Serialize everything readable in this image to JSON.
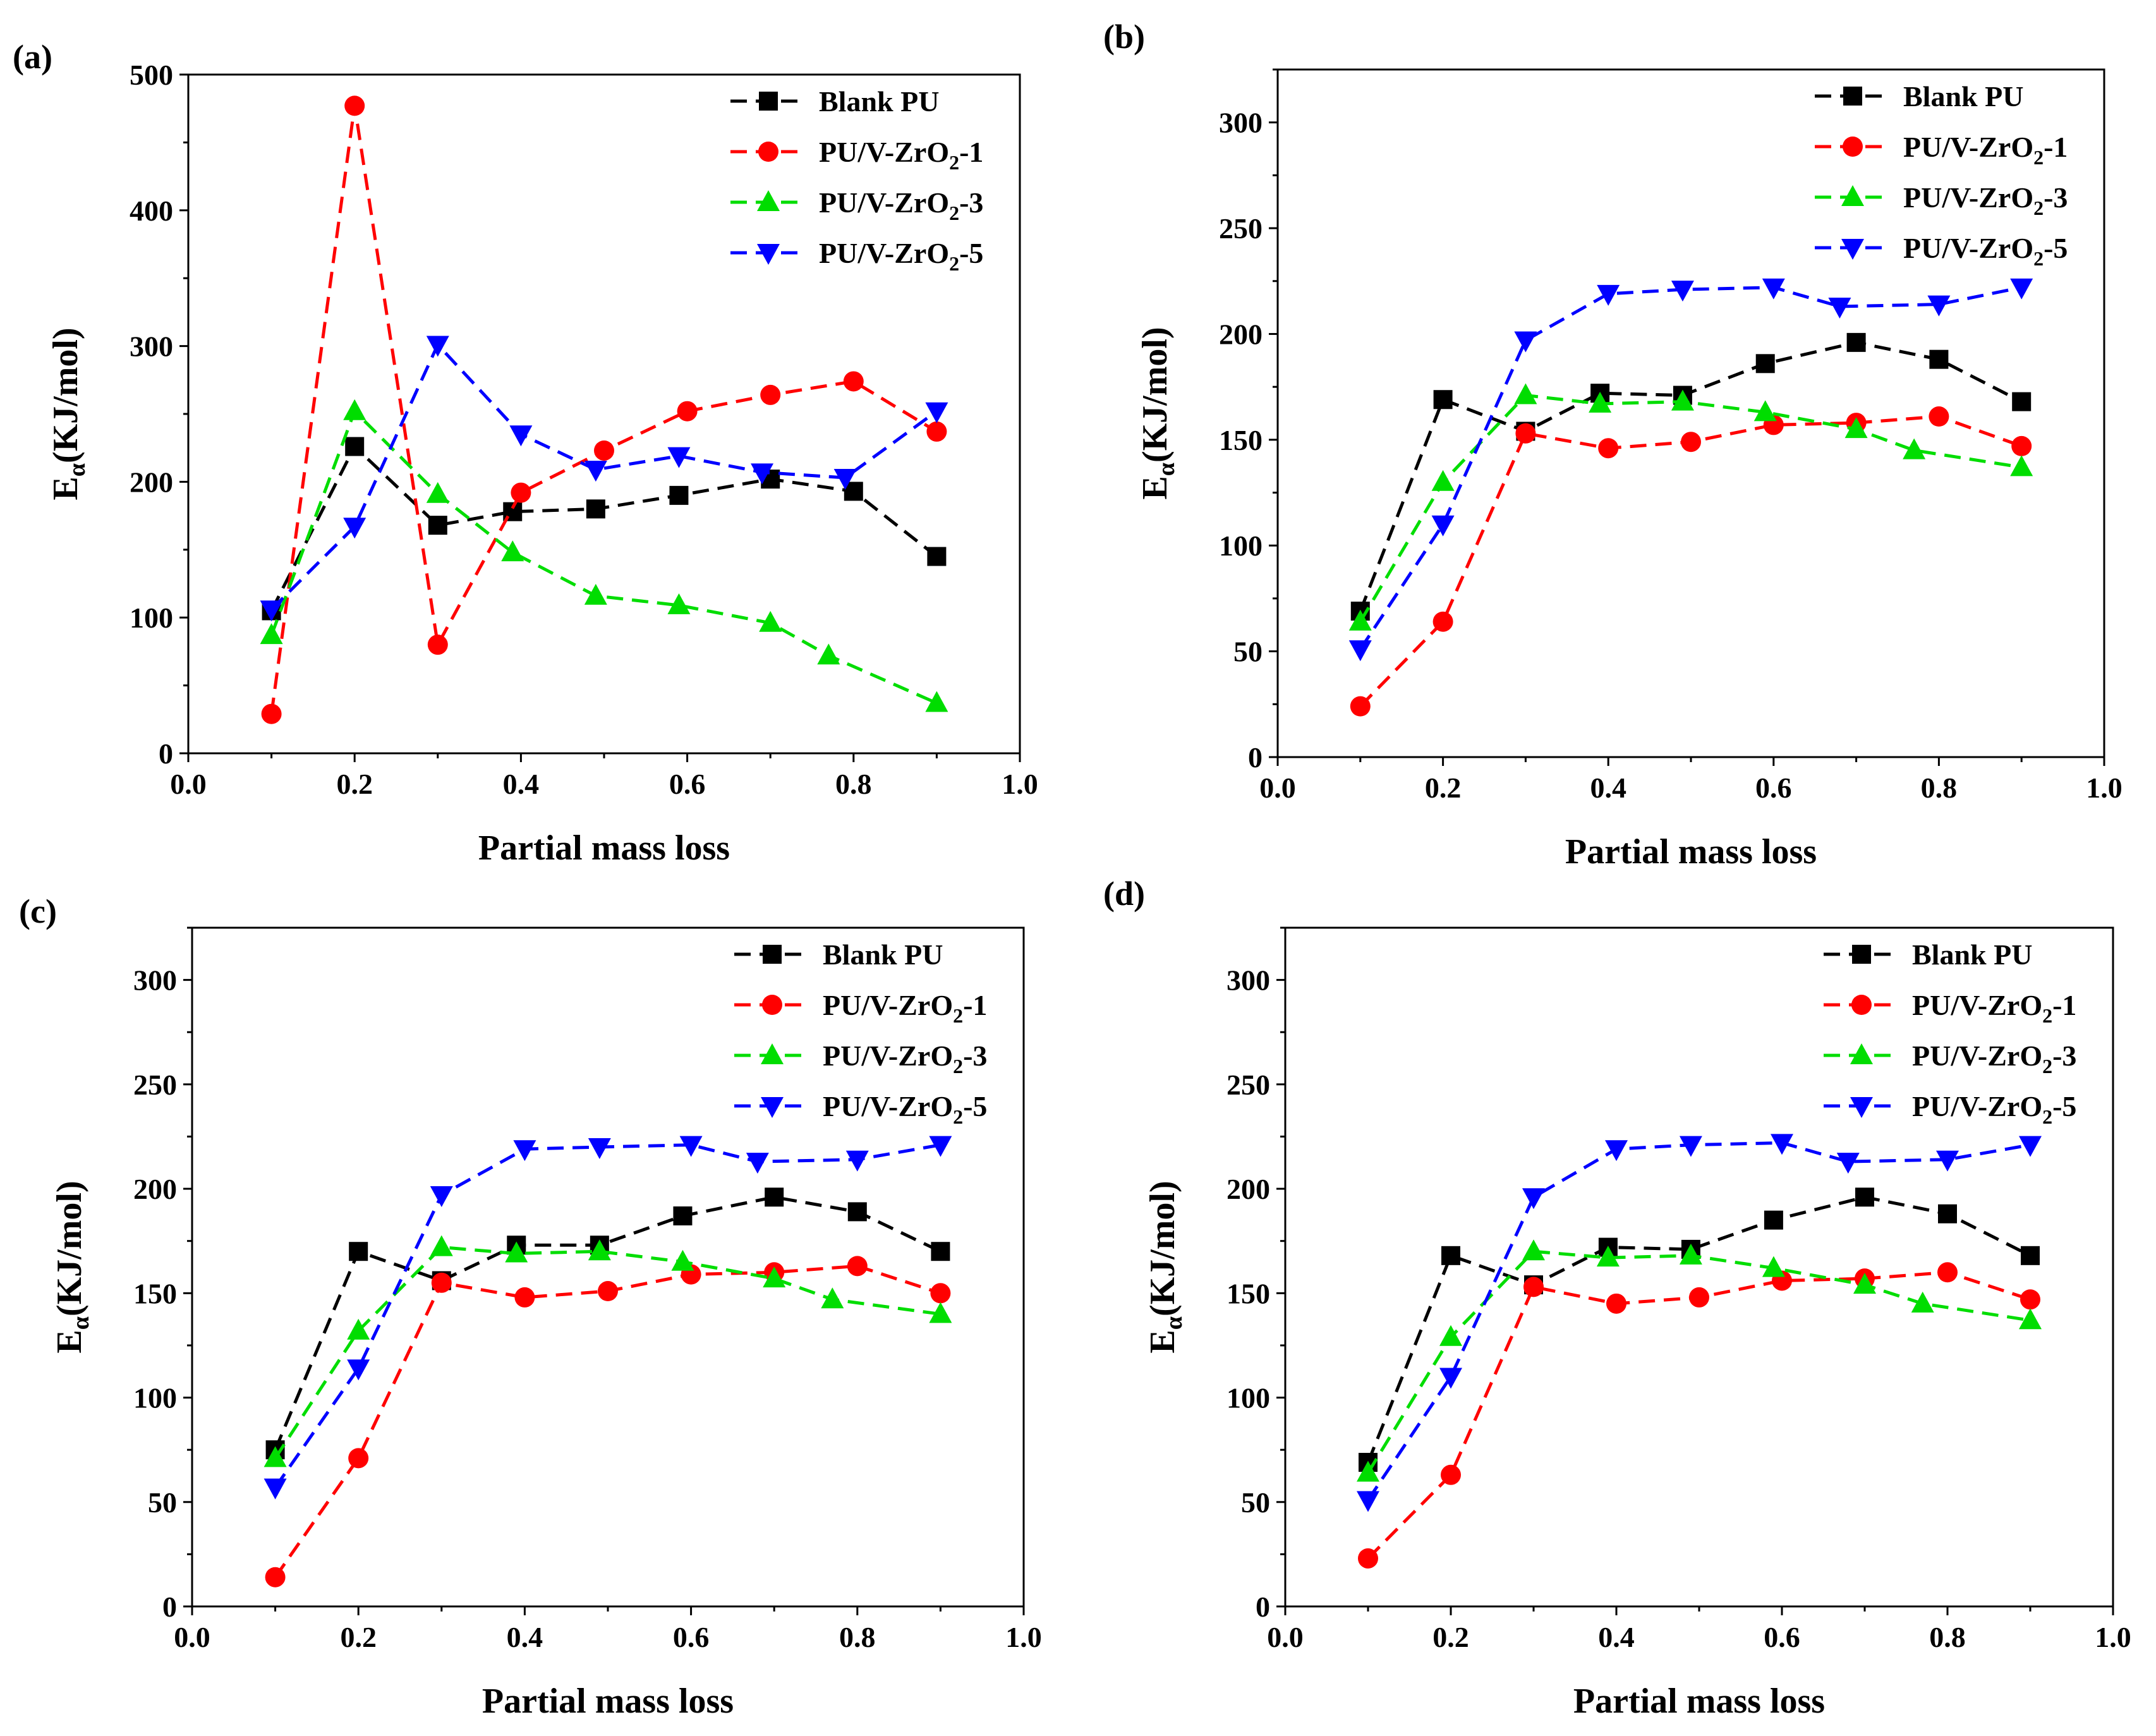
{
  "figure_title": "",
  "chart_data": [
    {
      "panel_label": "(a)",
      "type": "line",
      "xlabel": "Partial mass loss",
      "ylabel": "Eα(KJ/mol)",
      "xlim": [
        0.0,
        1.0
      ],
      "ylim": [
        0,
        500
      ],
      "xticks": [
        "0.0",
        "0.2",
        "0.4",
        "0.6",
        "0.8",
        "1.0"
      ],
      "yticks": [
        "0",
        "100",
        "200",
        "300",
        "400",
        "500"
      ],
      "xtick_values": [
        0.0,
        0.2,
        0.4,
        0.6,
        0.8,
        1.0
      ],
      "ytick_values": [
        0,
        100,
        200,
        300,
        400,
        500
      ],
      "grid": false,
      "legend_position": "top-right",
      "series": [
        {
          "name": "Blank PU",
          "color": "#000000",
          "marker": "square",
          "x": [
            0.1,
            0.2,
            0.3,
            0.39,
            0.49,
            0.59,
            0.7,
            0.8,
            0.9
          ],
          "y": [
            105,
            226,
            168,
            178,
            180,
            190,
            202,
            193,
            145
          ]
        },
        {
          "name": "PU/V-ZrO2-1",
          "color": "#ff0000",
          "marker": "circle",
          "x": [
            0.1,
            0.2,
            0.3,
            0.4,
            0.5,
            0.6,
            0.7,
            0.8,
            0.9
          ],
          "y": [
            29,
            477,
            80,
            192,
            223,
            252,
            264,
            274,
            237
          ]
        },
        {
          "name": "PU/V-ZrO2-3",
          "color": "#00dd00",
          "marker": "triangle-up",
          "x": [
            0.1,
            0.2,
            0.3,
            0.39,
            0.49,
            0.59,
            0.7,
            0.77,
            0.9
          ],
          "y": [
            87,
            252,
            191,
            148,
            116,
            109,
            96,
            72,
            37
          ]
        },
        {
          "name": "PU/V-ZrO2-5",
          "color": "#0000ff",
          "marker": "triangle-down",
          "x": [
            0.1,
            0.2,
            0.3,
            0.4,
            0.49,
            0.59,
            0.69,
            0.79,
            0.9
          ],
          "y": [
            106,
            167,
            301,
            235,
            209,
            219,
            207,
            203,
            252
          ]
        }
      ]
    },
    {
      "panel_label": "(b)",
      "type": "line",
      "xlabel": "Partial mass loss",
      "ylabel": "Eα(KJ/mol)",
      "xlim": [
        0.0,
        1.0
      ],
      "ylim": [
        0,
        325
      ],
      "xticks": [
        "0.0",
        "0.2",
        "0.4",
        "0.6",
        "0.8",
        "1.0"
      ],
      "yticks": [
        "0",
        "50",
        "100",
        "150",
        "200",
        "250",
        "300"
      ],
      "xtick_values": [
        0.0,
        0.2,
        0.4,
        0.6,
        0.8,
        1.0
      ],
      "ytick_values": [
        0,
        50,
        100,
        150,
        200,
        250,
        300
      ],
      "grid": false,
      "legend_position": "top-right",
      "series": [
        {
          "name": "Blank PU",
          "color": "#000000",
          "marker": "square",
          "x": [
            0.1,
            0.2,
            0.3,
            0.39,
            0.49,
            0.59,
            0.7,
            0.8,
            0.9
          ],
          "y": [
            69,
            169,
            154,
            172,
            171,
            186,
            196,
            188,
            168
          ]
        },
        {
          "name": "PU/V-ZrO2-1",
          "color": "#ff0000",
          "marker": "circle",
          "x": [
            0.1,
            0.2,
            0.3,
            0.4,
            0.5,
            0.6,
            0.7,
            0.8,
            0.9
          ],
          "y": [
            24,
            64,
            153,
            146,
            149,
            157,
            158,
            161,
            147
          ]
        },
        {
          "name": "PU/V-ZrO2-3",
          "color": "#00dd00",
          "marker": "triangle-up",
          "x": [
            0.1,
            0.2,
            0.3,
            0.39,
            0.49,
            0.59,
            0.7,
            0.77,
            0.9
          ],
          "y": [
            64,
            130,
            171,
            167,
            168,
            163,
            155,
            145,
            137
          ]
        },
        {
          "name": "PU/V-ZrO2-5",
          "color": "#0000ff",
          "marker": "triangle-down",
          "x": [
            0.1,
            0.2,
            0.3,
            0.4,
            0.49,
            0.6,
            0.68,
            0.8,
            0.9
          ],
          "y": [
            51,
            110,
            197,
            219,
            221,
            222,
            213,
            214,
            222
          ]
        }
      ]
    },
    {
      "panel_label": "(c)",
      "type": "line",
      "xlabel": "Partial mass loss",
      "ylabel": "Eα(KJ/mol)",
      "xlim": [
        0.0,
        1.0
      ],
      "ylim": [
        0,
        325
      ],
      "xticks": [
        "0.0",
        "0.2",
        "0.4",
        "0.6",
        "0.8",
        "1.0"
      ],
      "yticks": [
        "0",
        "50",
        "100",
        "150",
        "200",
        "250",
        "300"
      ],
      "xtick_values": [
        0.0,
        0.2,
        0.4,
        0.6,
        0.8,
        1.0
      ],
      "ytick_values": [
        0,
        50,
        100,
        150,
        200,
        250,
        300
      ],
      "grid": false,
      "legend_position": "top-right",
      "series": [
        {
          "name": "Blank PU",
          "color": "#000000",
          "marker": "square",
          "x": [
            0.1,
            0.2,
            0.3,
            0.39,
            0.49,
            0.59,
            0.7,
            0.8,
            0.9
          ],
          "y": [
            75,
            170,
            156,
            173,
            173,
            187,
            196,
            189,
            170
          ]
        },
        {
          "name": "PU/V-ZrO2-1",
          "color": "#ff0000",
          "marker": "circle",
          "x": [
            0.1,
            0.2,
            0.3,
            0.4,
            0.5,
            0.6,
            0.7,
            0.8,
            0.9
          ],
          "y": [
            14,
            71,
            155,
            148,
            151,
            159,
            160,
            163,
            150
          ]
        },
        {
          "name": "PU/V-ZrO2-3",
          "color": "#00dd00",
          "marker": "triangle-up",
          "x": [
            0.1,
            0.2,
            0.3,
            0.39,
            0.49,
            0.59,
            0.7,
            0.77,
            0.9
          ],
          "y": [
            71,
            132,
            172,
            169,
            170,
            165,
            157,
            147,
            140
          ]
        },
        {
          "name": "PU/V-ZrO2-5",
          "color": "#0000ff",
          "marker": "triangle-down",
          "x": [
            0.1,
            0.2,
            0.3,
            0.4,
            0.49,
            0.6,
            0.68,
            0.8,
            0.9
          ],
          "y": [
            57,
            114,
            197,
            219,
            220,
            221,
            213,
            214,
            221
          ]
        }
      ]
    },
    {
      "panel_label": "(d)",
      "type": "line",
      "xlabel": "Partial mass loss",
      "ylabel": "Eα(KJ/mol)",
      "xlim": [
        0.0,
        1.0
      ],
      "ylim": [
        0,
        325
      ],
      "xticks": [
        "0.0",
        "0.2",
        "0.4",
        "0.6",
        "0.8",
        "1.0"
      ],
      "yticks": [
        "0",
        "50",
        "100",
        "150",
        "200",
        "250",
        "300"
      ],
      "xtick_values": [
        0.0,
        0.2,
        0.4,
        0.6,
        0.8,
        1.0
      ],
      "ytick_values": [
        0,
        50,
        100,
        150,
        200,
        250,
        300
      ],
      "grid": false,
      "legend_position": "top-right",
      "series": [
        {
          "name": "Blank PU",
          "color": "#000000",
          "marker": "square",
          "x": [
            0.1,
            0.2,
            0.3,
            0.39,
            0.49,
            0.59,
            0.7,
            0.8,
            0.9
          ],
          "y": [
            69,
            168,
            154,
            172,
            171,
            185,
            196,
            188,
            168
          ]
        },
        {
          "name": "PU/V-ZrO2-1",
          "color": "#ff0000",
          "marker": "circle",
          "x": [
            0.1,
            0.2,
            0.3,
            0.4,
            0.5,
            0.6,
            0.7,
            0.8,
            0.9
          ],
          "y": [
            23,
            63,
            153,
            145,
            148,
            156,
            157,
            160,
            147
          ]
        },
        {
          "name": "PU/V-ZrO2-3",
          "color": "#00dd00",
          "marker": "triangle-up",
          "x": [
            0.1,
            0.2,
            0.3,
            0.39,
            0.49,
            0.59,
            0.7,
            0.77,
            0.9
          ],
          "y": [
            64,
            129,
            170,
            167,
            168,
            162,
            154,
            145,
            137
          ]
        },
        {
          "name": "PU/V-ZrO2-5",
          "color": "#0000ff",
          "marker": "triangle-down",
          "x": [
            0.1,
            0.2,
            0.3,
            0.4,
            0.49,
            0.6,
            0.68,
            0.8,
            0.9
          ],
          "y": [
            51,
            110,
            196,
            219,
            221,
            222,
            213,
            214,
            221
          ]
        }
      ]
    }
  ]
}
